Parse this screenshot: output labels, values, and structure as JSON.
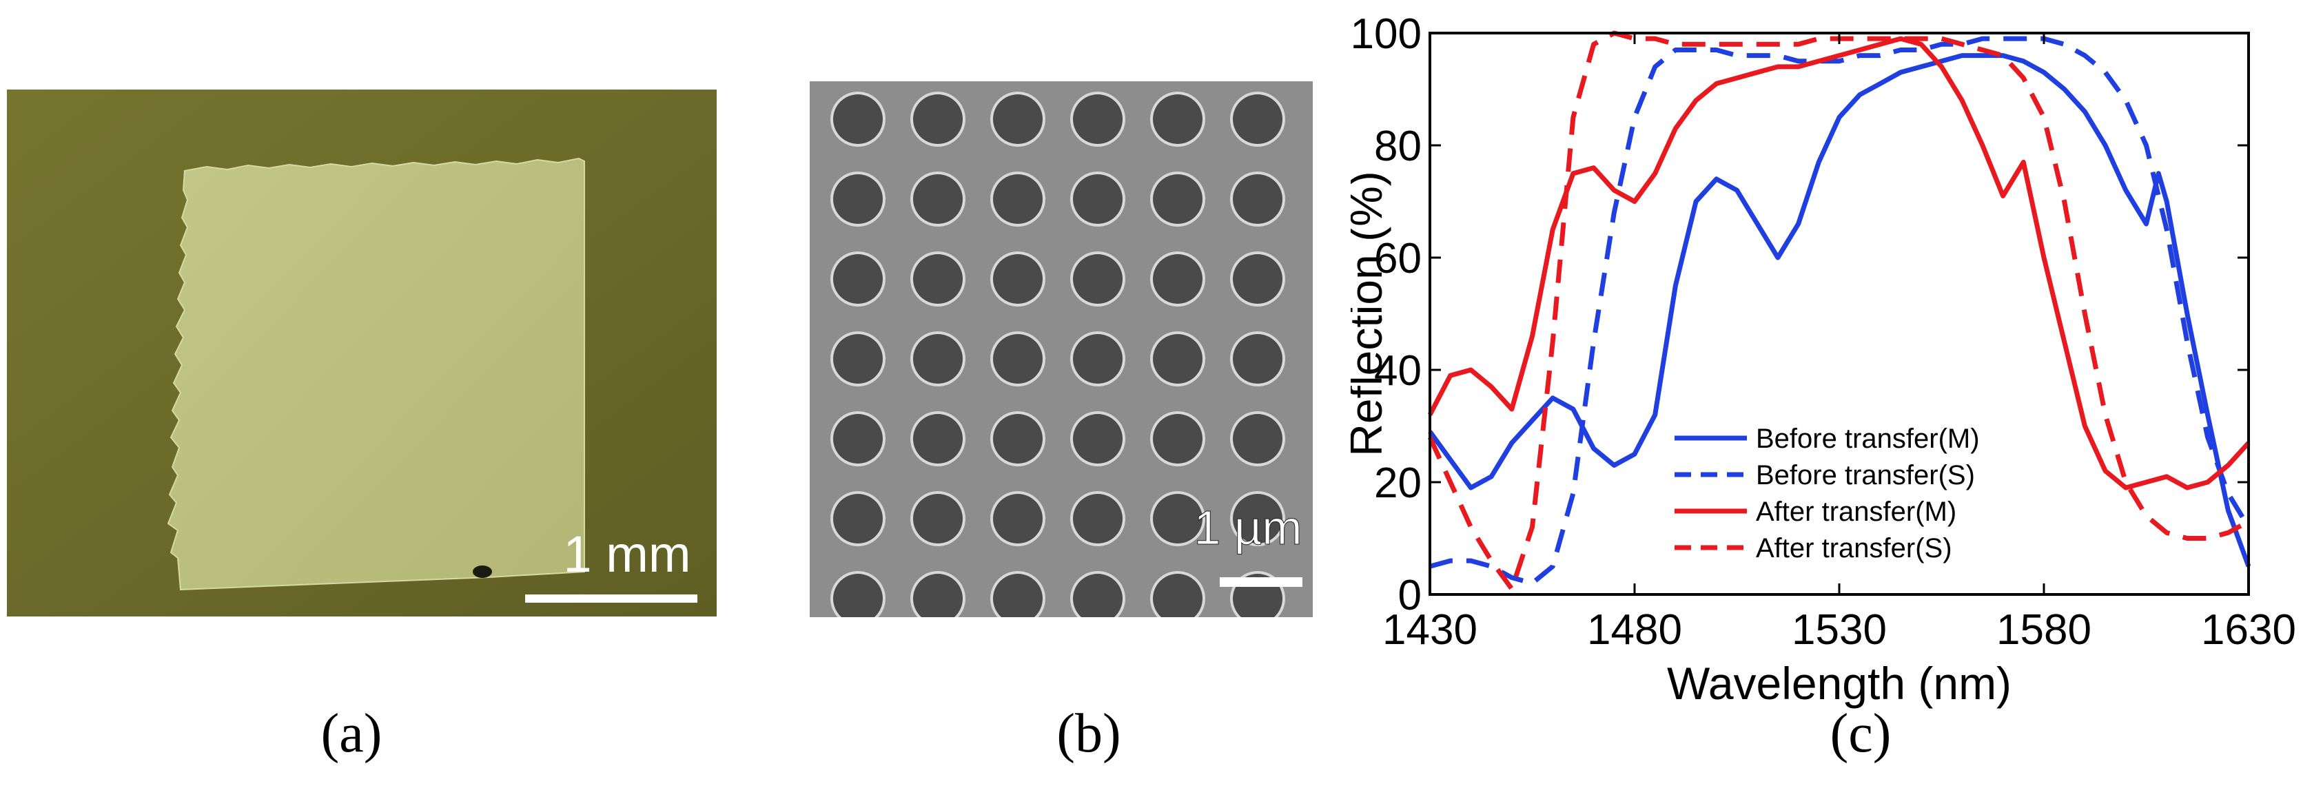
{
  "panels": {
    "a": {
      "caption": "(a)",
      "scalebar_label": "1 mm",
      "colors": {
        "substrate": "#6b6a2a",
        "membrane": "#b9bd7c"
      }
    },
    "b": {
      "caption": "(b)",
      "scalebar_label": "1 µm",
      "hole_rows": 7,
      "hole_cols": 6,
      "colors": {
        "background": "#8d8d8d",
        "hole": "#4a4a4a",
        "rim": "#d8d8d8"
      }
    },
    "c": {
      "caption": "(c)"
    }
  },
  "chart_data": {
    "type": "line",
    "title": "",
    "xlabel": "Wavelength (nm)",
    "ylabel": "Reflection (%)",
    "xlim": [
      1430,
      1630
    ],
    "ylim": [
      0,
      100
    ],
    "xticks": [
      1430,
      1480,
      1530,
      1580,
      1630
    ],
    "yticks": [
      0,
      20,
      40,
      60,
      80,
      100
    ],
    "grid": false,
    "legend": {
      "placement": "bottom-center"
    },
    "series": [
      {
        "name": "Before transfer(M)",
        "color": "#1f3fe0",
        "dash": "solid",
        "x": [
          1430,
          1435,
          1440,
          1445,
          1450,
          1455,
          1460,
          1465,
          1470,
          1475,
          1480,
          1485,
          1490,
          1495,
          1500,
          1505,
          1510,
          1515,
          1520,
          1525,
          1530,
          1535,
          1540,
          1545,
          1550,
          1555,
          1560,
          1565,
          1570,
          1575,
          1580,
          1585,
          1590,
          1595,
          1600,
          1605,
          1608,
          1610,
          1615,
          1620,
          1625,
          1630
        ],
        "y": [
          29,
          24,
          19,
          21,
          27,
          31,
          35,
          33,
          26,
          23,
          25,
          32,
          55,
          70,
          74,
          72,
          66,
          60,
          66,
          77,
          85,
          89,
          91,
          93,
          94,
          95,
          96,
          96,
          96,
          95,
          93,
          90,
          86,
          80,
          72,
          66,
          75,
          70,
          50,
          32,
          15,
          5
        ]
      },
      {
        "name": "Before transfer(S)",
        "color": "#1f3fe0",
        "dash": "dashed",
        "x": [
          1430,
          1435,
          1440,
          1445,
          1450,
          1455,
          1460,
          1465,
          1470,
          1475,
          1480,
          1485,
          1490,
          1495,
          1500,
          1505,
          1510,
          1515,
          1520,
          1525,
          1530,
          1535,
          1540,
          1545,
          1550,
          1555,
          1560,
          1565,
          1570,
          1575,
          1580,
          1585,
          1590,
          1595,
          1600,
          1605,
          1610,
          1615,
          1620,
          1625,
          1630
        ],
        "y": [
          5,
          6,
          6,
          5,
          3,
          2,
          5,
          18,
          45,
          68,
          85,
          94,
          97,
          97,
          97,
          96,
          96,
          96,
          95,
          95,
          95,
          96,
          96,
          97,
          97,
          98,
          98,
          99,
          99,
          99,
          99,
          98,
          96,
          93,
          88,
          80,
          65,
          45,
          28,
          18,
          12
        ]
      },
      {
        "name": "After transfer(M)",
        "color": "#e8191f",
        "dash": "solid",
        "x": [
          1430,
          1435,
          1440,
          1445,
          1450,
          1455,
          1460,
          1465,
          1470,
          1475,
          1480,
          1485,
          1490,
          1495,
          1500,
          1505,
          1510,
          1515,
          1520,
          1525,
          1530,
          1535,
          1540,
          1545,
          1550,
          1555,
          1560,
          1565,
          1570,
          1575,
          1580,
          1585,
          1590,
          1595,
          1600,
          1605,
          1610,
          1615,
          1620,
          1625,
          1630
        ],
        "y": [
          32,
          39,
          40,
          37,
          33,
          46,
          65,
          75,
          76,
          72,
          70,
          75,
          83,
          88,
          91,
          92,
          93,
          94,
          94,
          95,
          96,
          97,
          98,
          99,
          98,
          94,
          88,
          80,
          71,
          77,
          60,
          45,
          30,
          22,
          19,
          20,
          21,
          19,
          20,
          23,
          27
        ]
      },
      {
        "name": "After transfer(S)",
        "color": "#e8191f",
        "dash": "dashed",
        "x": [
          1430,
          1435,
          1440,
          1445,
          1450,
          1455,
          1460,
          1465,
          1470,
          1475,
          1480,
          1485,
          1490,
          1495,
          1500,
          1505,
          1510,
          1515,
          1520,
          1525,
          1530,
          1535,
          1540,
          1545,
          1550,
          1555,
          1560,
          1565,
          1570,
          1575,
          1580,
          1585,
          1590,
          1595,
          1600,
          1605,
          1610,
          1615,
          1620,
          1625,
          1630
        ],
        "y": [
          28,
          20,
          12,
          6,
          1,
          12,
          45,
          85,
          98,
          100,
          99,
          99,
          98,
          98,
          98,
          98,
          98,
          98,
          98,
          99,
          99,
          99,
          99,
          99,
          99,
          99,
          98,
          97,
          96,
          92,
          85,
          70,
          50,
          32,
          20,
          14,
          11,
          10,
          10,
          11,
          13
        ]
      }
    ]
  }
}
